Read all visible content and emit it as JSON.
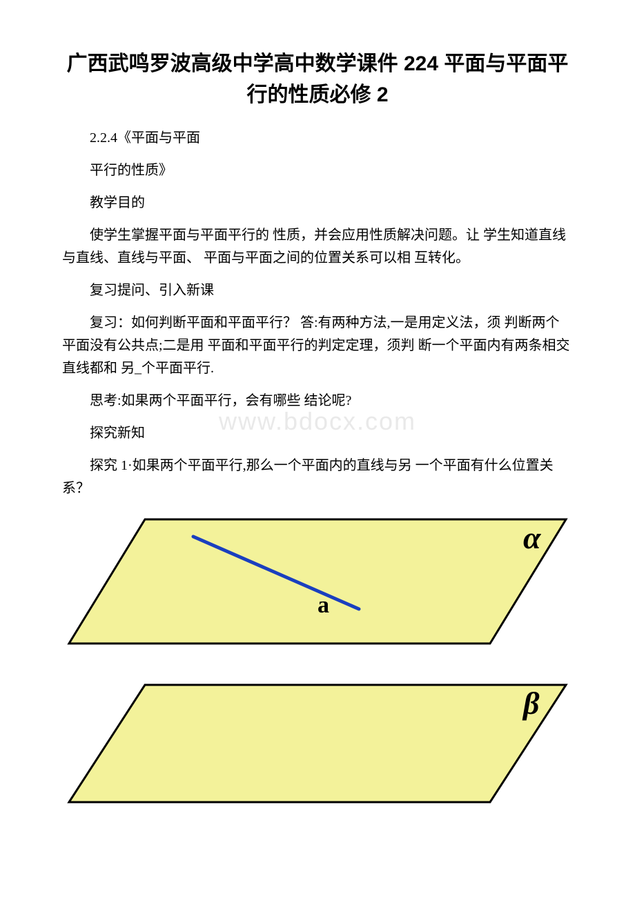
{
  "title": "广西武鸣罗波高级中学高中数学课件 224 平面与平面平行的性质必修 2",
  "lines": {
    "l1": "2.2.4《平面与平面",
    "l2": "平行的性质》",
    "l3": "教学目的",
    "l4": "使学生掌握平面与平面平行的 性质，并会应用性质解决问题。让 学生知道直线与直线、直线与平面、 平面与平面之间的位置关系可以相 互转化。",
    "l5": "复习提问、引入新课",
    "l6": "复习：如何判断平面和平面平行？ 答:有两种方法,一是用定义法，须 判断两个平面没有公共点;二是用 平面和平面平行的判定定理，须判 断一个平面内有两条相交直线都和 另_个平面平行.",
    "l7": "思考:如果两个平面平行，会有哪些 结论呢?",
    "l8": "探究新知",
    "l9": "探究 1·如果两个平面平行,那么一个平面内的直线与另 一个平面有什么位置关系？"
  },
  "watermark": "www.bdocx.com",
  "diagram": {
    "plane_fill": "#f3f29a",
    "plane_stroke": "#000000",
    "plane_stroke_width": 3,
    "line_stroke": "#1a3fbf",
    "line_stroke_width": 5,
    "label_a": "a",
    "label_alpha": "α",
    "label_beta": "β",
    "label_fontsize": 34,
    "label_alpha_fontsize": 46,
    "label_beta_fontsize": 46,
    "label_color": "#000000"
  }
}
